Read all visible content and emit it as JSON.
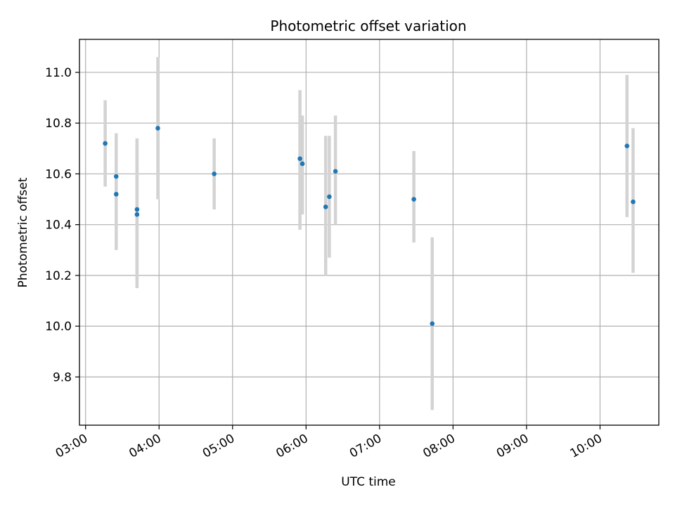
{
  "chart_data": {
    "type": "scatter",
    "title": "Photometric offset variation",
    "xlabel": "UTC time",
    "ylabel": "Photometric offset",
    "x_is_time": true,
    "xlim": [
      "02:55",
      "10:48"
    ],
    "ylim": [
      9.61,
      11.13
    ],
    "x_ticks": [
      "03:00",
      "04:00",
      "05:00",
      "06:00",
      "07:00",
      "08:00",
      "09:00",
      "10:00"
    ],
    "y_ticks": [
      9.8,
      10.0,
      10.2,
      10.4,
      10.6,
      10.8,
      11.0
    ],
    "y_tick_labels": [
      "9.8",
      "10.0",
      "10.2",
      "10.4",
      "10.6",
      "10.8",
      "11.0"
    ],
    "grid": true,
    "marker_color": "#1f77b4",
    "errorbar_color": "#d3d3d3",
    "points": [
      {
        "time": "03:16",
        "y": 10.72,
        "low": 10.55,
        "high": 10.89
      },
      {
        "time": "03:25",
        "y": 10.59,
        "low": 10.43,
        "high": 10.76
      },
      {
        "time": "03:25",
        "y": 10.52,
        "low": 10.3,
        "high": 10.74
      },
      {
        "time": "03:42",
        "y": 10.46,
        "low": 10.18,
        "high": 10.74
      },
      {
        "time": "03:42",
        "y": 10.44,
        "low": 10.15,
        "high": 10.72
      },
      {
        "time": "03:59",
        "y": 10.78,
        "low": 10.5,
        "high": 11.06
      },
      {
        "time": "04:45",
        "y": 10.6,
        "low": 10.46,
        "high": 10.74
      },
      {
        "time": "05:55",
        "y": 10.66,
        "low": 10.38,
        "high": 10.93
      },
      {
        "time": "05:57",
        "y": 10.64,
        "low": 10.44,
        "high": 10.83
      },
      {
        "time": "06:16",
        "y": 10.47,
        "low": 10.2,
        "high": 10.75
      },
      {
        "time": "06:19",
        "y": 10.51,
        "low": 10.27,
        "high": 10.75
      },
      {
        "time": "06:24",
        "y": 10.61,
        "low": 10.4,
        "high": 10.83
      },
      {
        "time": "07:28",
        "y": 10.5,
        "low": 10.33,
        "high": 10.69
      },
      {
        "time": "07:43",
        "y": 10.01,
        "low": 9.67,
        "high": 10.35
      },
      {
        "time": "10:22",
        "y": 10.71,
        "low": 10.43,
        "high": 10.99
      },
      {
        "time": "10:27",
        "y": 10.49,
        "low": 10.21,
        "high": 10.78
      }
    ]
  }
}
